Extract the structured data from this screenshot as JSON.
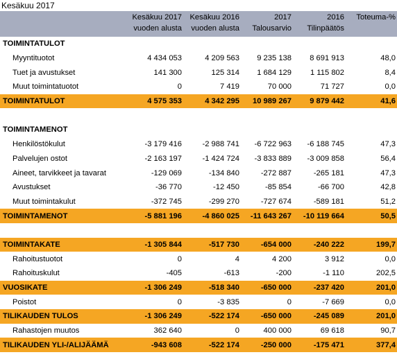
{
  "title": "Kesäkuu 2017",
  "headers": [
    {
      "line1": "Kesäkuu 2017",
      "line2": "vuoden alusta"
    },
    {
      "line1": "Kesäkuu 2016",
      "line2": "vuoden alusta"
    },
    {
      "line1": "2017",
      "line2": "Talousarvio"
    },
    {
      "line1": "2016",
      "line2": "Tilinpäätös"
    },
    {
      "line1": "Toteuma-%",
      "line2": ""
    }
  ],
  "rows": [
    {
      "type": "section",
      "label": "TOIMINTATULOT",
      "values": [
        "",
        "",
        "",
        "",
        ""
      ]
    },
    {
      "type": "item",
      "label": "Myyntituotot",
      "values": [
        "4 434 053",
        "4 209 563",
        "9 235 138",
        "8 691 913",
        "48,0"
      ]
    },
    {
      "type": "item",
      "label": "Tuet ja avustukset",
      "values": [
        "141 300",
        "125 314",
        "1 684 129",
        "1 115 802",
        "8,4"
      ]
    },
    {
      "type": "item",
      "label": "Muut toimintatuotot",
      "values": [
        "0",
        "7 419",
        "70 000",
        "71 727",
        "0,0"
      ]
    },
    {
      "type": "total",
      "label": "TOIMINTATULOT",
      "values": [
        "4 575 353",
        "4 342 295",
        "10 989 267",
        "9 879 442",
        "41,6"
      ]
    },
    {
      "type": "blank",
      "label": "",
      "values": [
        "",
        "",
        "",
        "",
        ""
      ]
    },
    {
      "type": "section",
      "label": "TOIMINTAMENOT",
      "values": [
        "",
        "",
        "",
        "",
        ""
      ]
    },
    {
      "type": "item",
      "label": "Henkilöstökulut",
      "values": [
        "-3 179 416",
        "-2 988 741",
        "-6 722 963",
        "-6 188 745",
        "47,3"
      ]
    },
    {
      "type": "item",
      "label": "Palvelujen ostot",
      "values": [
        "-2 163 197",
        "-1 424 724",
        "-3 833 889",
        "-3 009 858",
        "56,4"
      ]
    },
    {
      "type": "item",
      "label": "Aineet, tarvikkeet ja tavarat",
      "values": [
        "-129 069",
        "-134 840",
        "-272 887",
        "-265 181",
        "47,3"
      ]
    },
    {
      "type": "item",
      "label": "Avustukset",
      "values": [
        "-36 770",
        "-12 450",
        "-85 854",
        "-66 700",
        "42,8"
      ]
    },
    {
      "type": "item",
      "label": "Muut toimintakulut",
      "values": [
        "-372 745",
        "-299 270",
        "-727 674",
        "-589 181",
        "51,2"
      ]
    },
    {
      "type": "total",
      "label": "TOIMINTAMENOT",
      "values": [
        "-5 881 196",
        "-4 860 025",
        "-11 643 267",
        "-10 119 664",
        "50,5"
      ]
    },
    {
      "type": "blank",
      "label": "",
      "values": [
        "",
        "",
        "",
        "",
        ""
      ]
    },
    {
      "type": "total",
      "label": "TOIMINTAKATE",
      "values": [
        "-1 305 844",
        "-517 730",
        "-654 000",
        "-240 222",
        "199,7"
      ]
    },
    {
      "type": "item",
      "label": "Rahoitustuotot",
      "values": [
        "0",
        "4",
        "4 200",
        "3 912",
        "0,0"
      ]
    },
    {
      "type": "item",
      "label": "Rahoituskulut",
      "values": [
        "-405",
        "-613",
        "-200",
        "-1 110",
        "202,5"
      ]
    },
    {
      "type": "total",
      "label": "VUOSIKATE",
      "values": [
        "-1 306 249",
        "-518 340",
        "-650 000",
        "-237 420",
        "201,0"
      ]
    },
    {
      "type": "item",
      "label": "Poistot",
      "values": [
        "0",
        "-3 835",
        "0",
        "-7 669",
        "0,0"
      ]
    },
    {
      "type": "total",
      "label": "TILIKAUDEN TULOS",
      "values": [
        "-1 306 249",
        "-522 174",
        "-650 000",
        "-245 089",
        "201,0"
      ]
    },
    {
      "type": "item",
      "label": "Rahastojen muutos",
      "values": [
        "362 640",
        "0",
        "400 000",
        "69 618",
        "90,7"
      ]
    },
    {
      "type": "total",
      "label": "TILIKAUDEN YLI-/ALIJÄÄMÄ",
      "values": [
        "-943 608",
        "-522 174",
        "-250 000",
        "-175 471",
        "377,4"
      ]
    }
  ],
  "colors": {
    "header_bg": "#a7adbf",
    "total_bg": "#f5a623"
  }
}
